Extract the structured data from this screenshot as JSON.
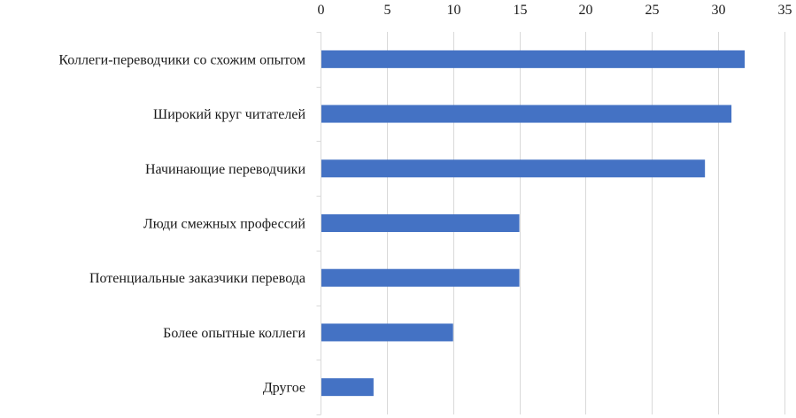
{
  "chart_data": {
    "type": "bar",
    "orientation": "horizontal",
    "categories": [
      "Коллеги-переводчики со схожим опытом",
      "Широкий круг читателей",
      "Начинающие переводчики",
      "Люди смежных профессий",
      "Потенциальные заказчики перевода",
      "Более опытные коллеги",
      "Другое"
    ],
    "values": [
      32,
      31,
      29,
      15,
      15,
      10,
      4
    ],
    "xlim": [
      0,
      35
    ],
    "xticks": [
      0,
      5,
      10,
      15,
      20,
      25,
      30,
      35
    ],
    "x_axis_position": "top",
    "grid": true,
    "bar_color": "#4472c4",
    "title": "",
    "xlabel": "",
    "ylabel": ""
  }
}
